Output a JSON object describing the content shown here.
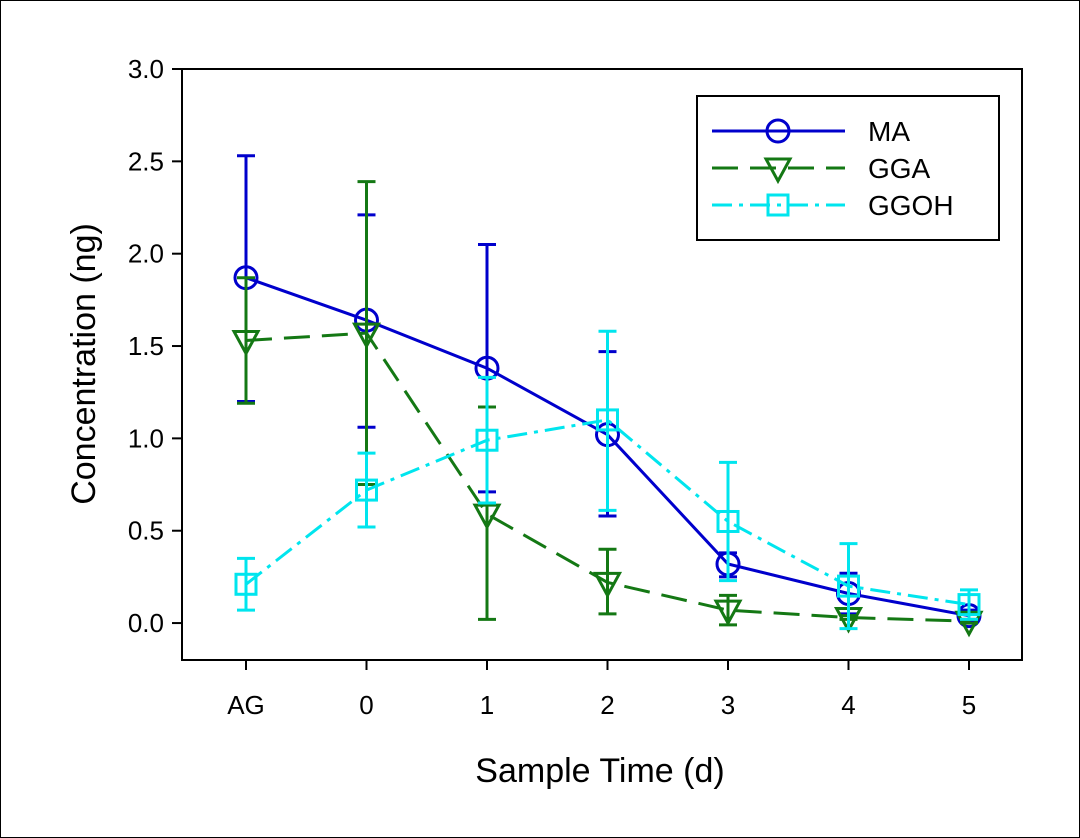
{
  "chart_data": {
    "type": "line",
    "xlabel": "Sample Time (d)",
    "ylabel": "Concentration (ng)",
    "categories": [
      "AG",
      "0",
      "1",
      "2",
      "3",
      "4",
      "5"
    ],
    "ylim": [
      -0.2,
      3.0
    ],
    "yticks": [
      "0.0",
      "0.5",
      "1.0",
      "1.5",
      "2.0",
      "2.5",
      "3.0"
    ],
    "legend_position": "top-right",
    "grid": false,
    "series": [
      {
        "name": "MA",
        "color": "#0000CC",
        "marker": "circle",
        "dash": "solid",
        "values": [
          1.87,
          1.64,
          1.38,
          1.02,
          0.32,
          0.16,
          0.04
        ],
        "err_low": [
          1.2,
          1.06,
          0.71,
          0.58,
          0.25,
          0.05,
          0.01
        ],
        "err_high": [
          2.53,
          2.21,
          2.05,
          1.47,
          0.38,
          0.27,
          0.07
        ]
      },
      {
        "name": "GGA",
        "color": "#147814",
        "marker": "triangle-down",
        "dash": "long-dash",
        "values": [
          1.53,
          1.57,
          0.59,
          0.22,
          0.07,
          0.03,
          0.01
        ],
        "err_low": [
          1.19,
          0.75,
          0.02,
          0.05,
          -0.01,
          0.02,
          0.0
        ],
        "err_high": [
          1.87,
          2.39,
          1.17,
          0.4,
          0.15,
          0.04,
          0.02
        ]
      },
      {
        "name": "GGOH",
        "color": "#00E5EE",
        "marker": "square",
        "dash": "dash-dot",
        "values": [
          0.21,
          0.72,
          0.99,
          1.1,
          0.55,
          0.2,
          0.1
        ],
        "err_low": [
          0.07,
          0.52,
          0.65,
          0.61,
          0.23,
          -0.03,
          0.02
        ],
        "err_high": [
          0.35,
          0.92,
          1.33,
          1.58,
          0.87,
          0.43,
          0.18
        ]
      }
    ]
  }
}
